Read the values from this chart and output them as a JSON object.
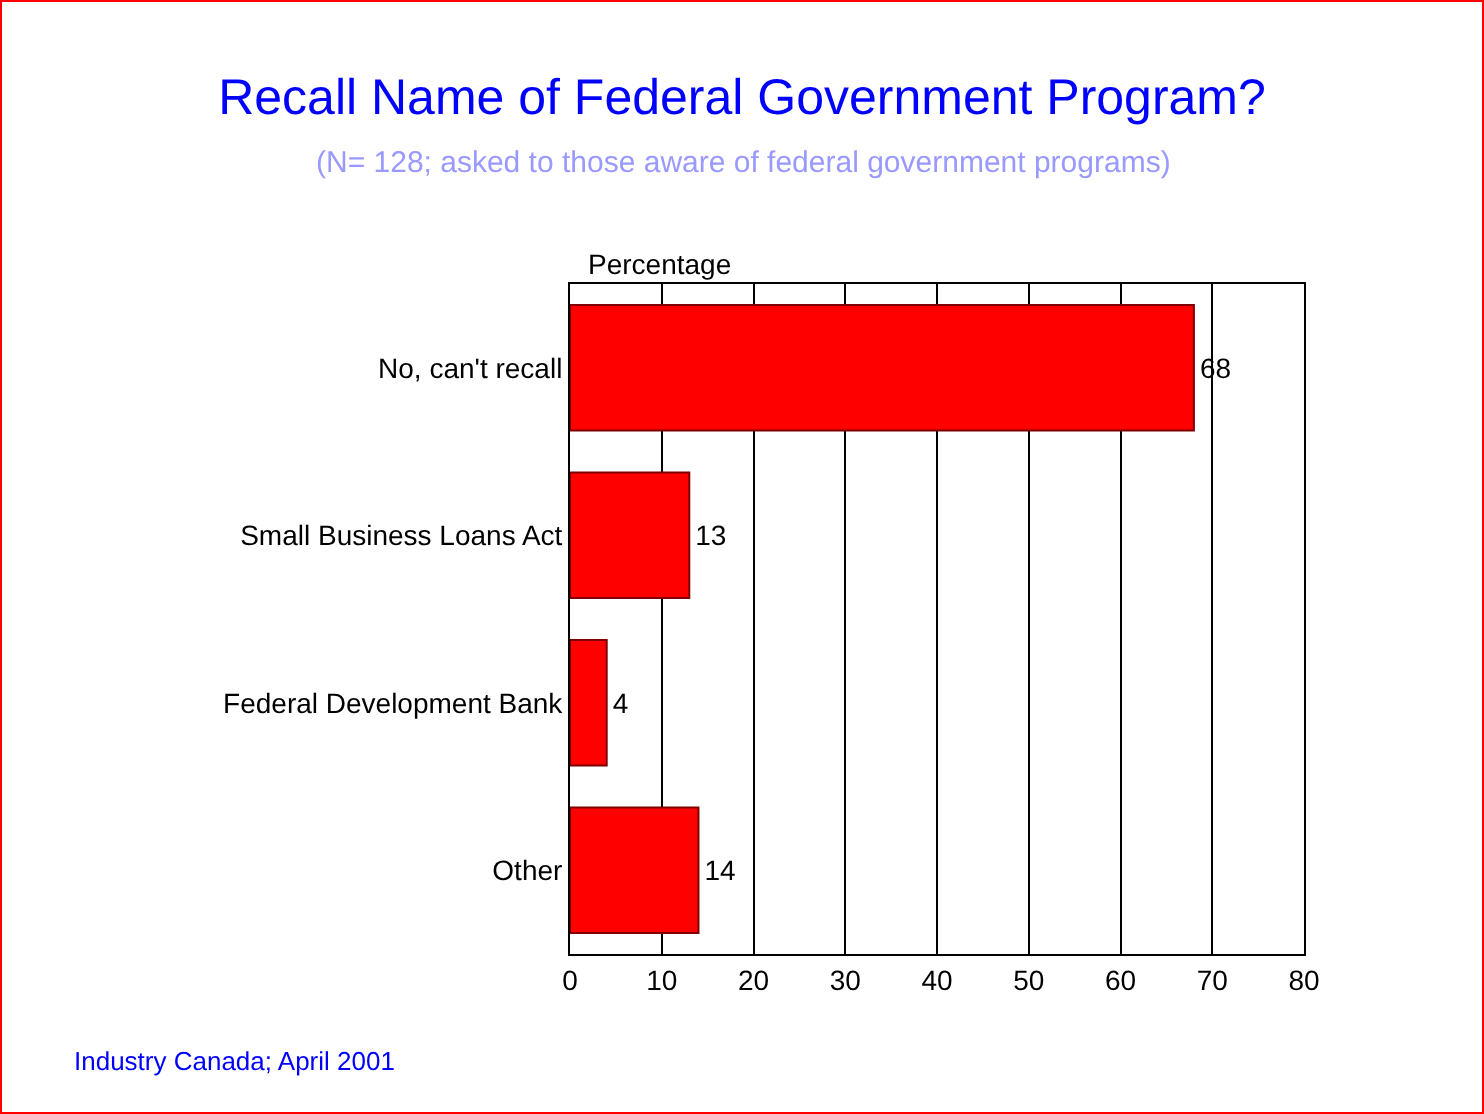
{
  "chart_data": {
    "type": "bar",
    "orientation": "horizontal",
    "title": "Recall Name of Federal Government Program?",
    "subtitle": "(N= 128; asked to those aware of federal government programs)",
    "xlabel": "Percentage",
    "categories": [
      "No, can't recall",
      "Small Business Loans Act",
      "Federal Development Bank",
      "Other"
    ],
    "values": [
      68,
      13,
      4,
      14
    ],
    "color": "#ff0000",
    "data_labels": true,
    "grid": "x",
    "xlim": [
      0,
      80
    ],
    "xticks": [
      0,
      10,
      20,
      30,
      40,
      50,
      60,
      70,
      80
    ],
    "annotations": [
      "Industry Canada; April 2001"
    ]
  }
}
